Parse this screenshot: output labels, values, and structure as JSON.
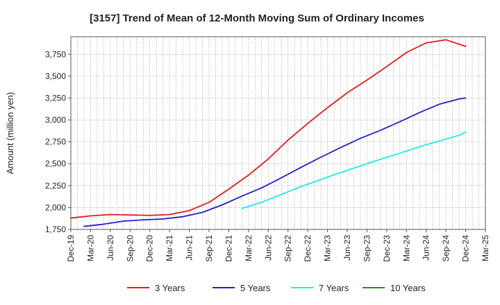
{
  "chart_data": {
    "type": "line",
    "title": "[3157]  Trend of Mean of 12-Month Moving Sum of Ordinary Incomes",
    "xlabel": "",
    "ylabel": "Amount (million yen)",
    "ylim": [
      1750,
      3950
    ],
    "yticks": [
      1750,
      2000,
      2250,
      2500,
      2750,
      3000,
      3250,
      3500,
      3750
    ],
    "ytick_labels": [
      "1,750",
      "2,000",
      "2,250",
      "2,500",
      "2,750",
      "3,000",
      "3,250",
      "3,500",
      "3,750"
    ],
    "x_start": "2019-12",
    "x_end": "2025-03",
    "xtick_labels": [
      "Dec-19",
      "Mar-20",
      "Jun-20",
      "Sep-20",
      "Dec-20",
      "Mar-21",
      "Jun-21",
      "Sep-21",
      "Dec-21",
      "Mar-22",
      "Jun-22",
      "Sep-22",
      "Dec-22",
      "Mar-23",
      "Jun-23",
      "Sep-23",
      "Dec-23",
      "Mar-24",
      "Jun-24",
      "Sep-24",
      "Dec-24",
      "Mar-25"
    ],
    "grid": true,
    "legend_position": "bottom",
    "series": [
      {
        "name": "3 Years",
        "color": "#e31a1c",
        "points": [
          [
            "Dec-19",
            1880
          ],
          [
            "Mar-20",
            1905
          ],
          [
            "Jun-20",
            1920
          ],
          [
            "Sep-20",
            1915
          ],
          [
            "Dec-20",
            1910
          ],
          [
            "Mar-21",
            1920
          ],
          [
            "Jun-21",
            1965
          ],
          [
            "Sep-21",
            2060
          ],
          [
            "Dec-21",
            2210
          ],
          [
            "Mar-22",
            2370
          ],
          [
            "Jun-22",
            2555
          ],
          [
            "Sep-22",
            2770
          ],
          [
            "Dec-22",
            2960
          ],
          [
            "Mar-23",
            3140
          ],
          [
            "Jun-23",
            3310
          ],
          [
            "Sep-23",
            3455
          ],
          [
            "Dec-23",
            3610
          ],
          [
            "Mar-24",
            3770
          ],
          [
            "Jun-24",
            3880
          ],
          [
            "Sep-24",
            3915
          ],
          [
            "Dec-24",
            3840
          ]
        ]
      },
      {
        "name": "5 Years",
        "color": "#1f1fcc",
        "points": [
          [
            "Feb-20",
            1785
          ],
          [
            "May-20",
            1810
          ],
          [
            "Aug-20",
            1845
          ],
          [
            "Nov-20",
            1860
          ],
          [
            "Feb-21",
            1870
          ],
          [
            "May-21",
            1895
          ],
          [
            "Aug-21",
            1945
          ],
          [
            "Nov-21",
            2030
          ],
          [
            "Feb-22",
            2130
          ],
          [
            "May-22",
            2225
          ],
          [
            "Aug-22",
            2340
          ],
          [
            "Nov-22",
            2460
          ],
          [
            "Feb-23",
            2575
          ],
          [
            "May-23",
            2685
          ],
          [
            "Aug-23",
            2790
          ],
          [
            "Nov-23",
            2880
          ],
          [
            "Feb-24",
            2980
          ],
          [
            "May-24",
            3085
          ],
          [
            "Aug-24",
            3180
          ],
          [
            "Nov-24",
            3240
          ],
          [
            "Dec-24",
            3250
          ]
        ]
      },
      {
        "name": "7 Years",
        "color": "#22e8e8",
        "points": [
          [
            "Feb-22",
            1990
          ],
          [
            "May-22",
            2060
          ],
          [
            "Aug-22",
            2150
          ],
          [
            "Nov-22",
            2240
          ],
          [
            "Feb-23",
            2320
          ],
          [
            "May-23",
            2400
          ],
          [
            "Aug-23",
            2475
          ],
          [
            "Nov-23",
            2550
          ],
          [
            "Feb-24",
            2620
          ],
          [
            "May-24",
            2695
          ],
          [
            "Aug-24",
            2760
          ],
          [
            "Nov-24",
            2825
          ],
          [
            "Dec-24",
            2860
          ]
        ]
      },
      {
        "name": "10 Years",
        "color": "#228b22",
        "points": []
      }
    ]
  }
}
